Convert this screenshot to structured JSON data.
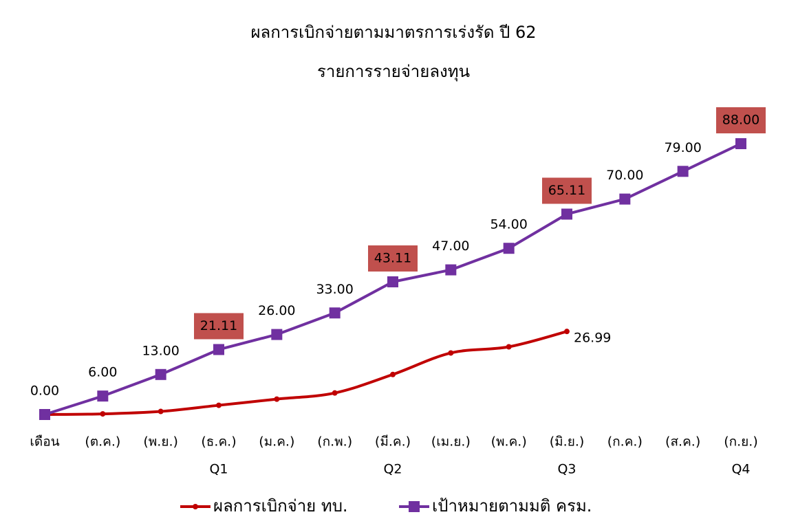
{
  "chart_data": {
    "type": "line",
    "title": "ผลการเบิกจ่ายตามมาตรการเร่งรัด ปี 62",
    "subtitle": "รายการรายจ่ายลงทุน",
    "categories": [
      "เดือน",
      "(ต.ค.)",
      "(พ.ย.)",
      "(ธ.ค.)",
      "(ม.ค.)",
      "(ก.พ.)",
      "(มี.ค.)",
      "(เม.ย.)",
      "(พ.ค.)",
      "(มิ.ย.)",
      "(ก.ค.)",
      "(ส.ค.)",
      "(ก.ย.)"
    ],
    "quarter_labels": [
      null,
      null,
      null,
      "Q1",
      null,
      null,
      "Q2",
      null,
      null,
      "Q3",
      null,
      null,
      "Q4"
    ],
    "ylim": [
      0,
      88
    ],
    "legend": "bottom",
    "series": [
      {
        "name": "ผลการเบิกจ่าย ทบ.",
        "color": "#c00000",
        "marker": "circle",
        "smooth": true,
        "values": [
          0,
          0.2,
          1,
          3,
          5,
          7,
          13,
          20,
          22,
          26.99,
          null,
          null,
          null
        ],
        "value_labels": [
          null,
          null,
          null,
          null,
          null,
          null,
          null,
          null,
          null,
          "26.99",
          null,
          null,
          null
        ],
        "label_position": "right"
      },
      {
        "name": "เป้าหมายตามมติ ครม.",
        "color": "#7030a0",
        "marker": "square",
        "smooth": false,
        "values": [
          0,
          6,
          13,
          21.11,
          26,
          33,
          43.11,
          47,
          54,
          65.11,
          70,
          79,
          88
        ],
        "value_labels": [
          "0.00",
          "6.00",
          "13.00",
          "21.11",
          "26.00",
          "33.00",
          "43.11",
          "47.00",
          "54.00",
          "65.11",
          "70.00",
          "79.00",
          "88.00"
        ],
        "label_position": "above",
        "boxed_labels": [
          3,
          6,
          9,
          12
        ],
        "box_color": "#c0504d"
      }
    ]
  }
}
